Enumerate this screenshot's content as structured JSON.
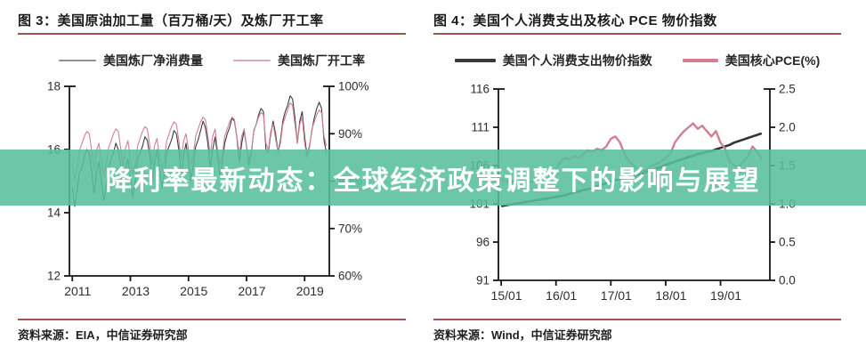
{
  "accent": {
    "rule_color": "#a2524e"
  },
  "banner": {
    "text": "降利率最新动态：全球经济政策调整下的影响与展望",
    "bg_color": "#57bf9b",
    "bg_opacity": 0.88,
    "text_color": "#ffffff"
  },
  "figure3": {
    "title": "图 3：美国原油加工量（百万桶/天）及炼厂开工率",
    "source": "资料来源：EIA，中信证券研究部",
    "legend": [
      {
        "label": "美国炼厂净消费量",
        "swatch_color": "#8f8f8f",
        "swatch_width": 42,
        "swatch_height": 2
      },
      {
        "label": "美国炼厂开工率",
        "swatch_color": "#d9aab5",
        "swatch_width": 42,
        "swatch_height": 2
      }
    ],
    "chart_data": {
      "type": "line",
      "title": "美国原油加工量（百万桶/天）及炼厂开工率",
      "x_start": 2011.0,
      "x_step_years": 0.0833333,
      "x_range": [
        2010.9,
        2019.85
      ],
      "x_ticks": [
        {
          "value": 2011,
          "label": "2011"
        },
        {
          "value": 2013,
          "label": "2013"
        },
        {
          "value": 2015,
          "label": "2015"
        },
        {
          "value": 2017,
          "label": "2017"
        },
        {
          "value": 2019,
          "label": "2019"
        }
      ],
      "left_axis": {
        "range": [
          12,
          18
        ],
        "ticks": [
          {
            "value": 12,
            "label": "12"
          },
          {
            "value": 14,
            "label": "14"
          },
          {
            "value": 16,
            "label": "16"
          },
          {
            "value": 18,
            "label": "18"
          }
        ]
      },
      "right_axis": {
        "range": [
          60,
          100
        ],
        "ticks": [
          {
            "value": 60,
            "label": "60%"
          },
          {
            "value": 70,
            "label": "70%"
          },
          {
            "value": 80,
            "label": "80%"
          },
          {
            "value": 90,
            "label": "90%"
          },
          {
            "value": 100,
            "label": "100%"
          }
        ]
      },
      "grid": false,
      "series": [
        {
          "name": "美国炼厂净消费量",
          "axis": "left",
          "color": "#3b3b3b",
          "stroke_width": 1.1,
          "values": [
            14.8,
            14.2,
            14.7,
            15.3,
            15.4,
            15.8,
            16.0,
            15.9,
            15.3,
            14.6,
            15.3,
            15.6,
            15.0,
            14.4,
            14.8,
            15.4,
            15.7,
            15.9,
            16.2,
            16.0,
            15.5,
            14.7,
            15.4,
            15.7,
            15.1,
            14.5,
            15.0,
            15.7,
            15.9,
            16.1,
            16.4,
            16.3,
            15.8,
            15.0,
            15.6,
            16.0,
            15.4,
            14.8,
            15.2,
            15.9,
            16.1,
            16.3,
            16.6,
            16.5,
            16.0,
            15.1,
            15.8,
            16.2,
            15.6,
            15.0,
            15.5,
            16.1,
            16.3,
            16.6,
            16.9,
            16.7,
            16.2,
            15.4,
            16.0,
            16.4,
            15.8,
            15.2,
            15.6,
            16.2,
            16.5,
            16.7,
            17.0,
            16.9,
            16.4,
            15.6,
            16.2,
            16.6,
            16.1,
            15.5,
            15.9,
            16.6,
            16.8,
            17.1,
            17.3,
            17.2,
            16.0,
            15.9,
            16.5,
            16.9,
            16.5,
            15.9,
            16.3,
            16.9,
            17.2,
            17.4,
            17.7,
            17.6,
            17.0,
            16.2,
            16.9,
            17.2,
            16.4,
            15.8,
            16.1,
            16.6,
            17.0,
            17.3,
            17.5,
            17.3,
            16.3,
            15.9
          ]
        },
        {
          "name": "美国炼厂开工率",
          "axis": "right",
          "color": "#d2808f",
          "stroke_width": 1.1,
          "values": [
            83.5,
            80.5,
            82.5,
            86.5,
            88,
            89.5,
            90.5,
            90,
            86.5,
            82.5,
            86.5,
            88,
            84,
            81,
            83,
            87,
            88.5,
            90,
            91,
            90.5,
            87,
            83,
            87,
            88.5,
            84.5,
            81.5,
            83.5,
            87.5,
            89,
            90.5,
            91.5,
            91,
            87.5,
            83.5,
            87.5,
            89,
            85.5,
            82.5,
            84.5,
            88.5,
            90,
            91.5,
            92.5,
            92,
            88.5,
            84.5,
            88.5,
            90,
            86.5,
            83.5,
            85.5,
            89.5,
            91,
            92.5,
            93.5,
            93,
            89.5,
            85.5,
            89.5,
            91,
            86.5,
            83.5,
            85.5,
            89.5,
            91,
            92.5,
            93.5,
            93,
            89.5,
            85.5,
            89.5,
            91,
            87.5,
            84.5,
            86.5,
            90.5,
            92,
            93.5,
            94.5,
            94,
            88,
            86.5,
            90.5,
            92,
            89,
            86,
            88,
            92,
            93.5,
            95,
            96.5,
            96,
            92,
            88,
            92,
            93.5,
            88,
            85,
            87,
            91,
            92.5,
            94,
            95,
            94.5,
            89.5,
            87.5
          ]
        }
      ]
    }
  },
  "figure4": {
    "title": "图 4：美国个人消费支出及核心 PCE 物价指数",
    "source": "资料来源：Wind，中信证券研究部",
    "legend": [
      {
        "label": "美国个人消费支出物价指数",
        "swatch_color": "#3a3a3a",
        "swatch_width": 46,
        "swatch_height": 4
      },
      {
        "label": "美国核心PCE(%)",
        "swatch_color": "#d2808f",
        "swatch_width": 40,
        "swatch_height": 4
      }
    ],
    "chart_data": {
      "type": "line",
      "title": "美国个人消费支出及核心 PCE 物价指数",
      "x_start": 2015.0,
      "x_step_years": 0.0833333,
      "x_range": [
        2014.95,
        2019.9
      ],
      "x_ticks": [
        {
          "value": 2015,
          "label": "15/01"
        },
        {
          "value": 2016,
          "label": "16/01"
        },
        {
          "value": 2017,
          "label": "17/01"
        },
        {
          "value": 2018,
          "label": "18/01"
        },
        {
          "value": 2019,
          "label": "19/01"
        }
      ],
      "left_axis": {
        "range": [
          91,
          116
        ],
        "ticks": [
          {
            "value": 91,
            "label": "91"
          },
          {
            "value": 96,
            "label": "96"
          },
          {
            "value": 101,
            "label": "101"
          },
          {
            "value": 106,
            "label": "106"
          },
          {
            "value": 111,
            "label": "111"
          },
          {
            "value": 116,
            "label": "116"
          }
        ]
      },
      "right_axis": {
        "range": [
          0,
          2.5
        ],
        "ticks": [
          {
            "value": 0,
            "label": "0.0"
          },
          {
            "value": 0.5,
            "label": "0.5"
          },
          {
            "value": 1.0,
            "label": "1.0"
          },
          {
            "value": 1.5,
            "label": "1.5"
          },
          {
            "value": 2.0,
            "label": "2.0"
          },
          {
            "value": 2.5,
            "label": "2.5"
          }
        ]
      },
      "grid": false,
      "series": [
        {
          "name": "美国个人消费支出物价指数",
          "axis": "left",
          "color": "#333333",
          "stroke_width": 2.6,
          "values": [
            100.7,
            100.8,
            100.9,
            101.0,
            101.1,
            101.2,
            101.3,
            101.4,
            101.5,
            101.6,
            101.7,
            101.8,
            101.9,
            102.0,
            102.1,
            102.3,
            102.5,
            102.6,
            102.8,
            102.9,
            103.1,
            103.3,
            103.5,
            103.7,
            103.9,
            104.1,
            104.2,
            104.4,
            104.5,
            104.6,
            104.8,
            105.0,
            105.2,
            105.4,
            105.6,
            105.8,
            106.1,
            106.3,
            106.5,
            106.7,
            106.9,
            107.1,
            107.3,
            107.5,
            107.6,
            107.8,
            107.9,
            108.1,
            108.3,
            108.5,
            108.7,
            109.0,
            109.2,
            109.4,
            109.6,
            109.8,
            110.0,
            110.2
          ]
        },
        {
          "name": "美国核心PCE(%)",
          "axis": "right",
          "color": "#d2808f",
          "stroke_width": 2.4,
          "values": [
            1.32,
            1.3,
            1.28,
            1.3,
            1.32,
            1.3,
            1.28,
            1.3,
            1.32,
            1.28,
            1.3,
            1.35,
            1.45,
            1.55,
            1.6,
            1.58,
            1.62,
            1.6,
            1.65,
            1.7,
            1.68,
            1.72,
            1.7,
            1.75,
            1.85,
            1.88,
            1.8,
            1.65,
            1.55,
            1.5,
            1.45,
            1.42,
            1.45,
            1.5,
            1.52,
            1.55,
            1.6,
            1.65,
            1.8,
            1.88,
            1.95,
            2.0,
            2.05,
            1.98,
            2.02,
            1.95,
            1.88,
            1.95,
            1.8,
            1.72,
            1.55,
            1.5,
            1.48,
            1.55,
            1.62,
            1.75,
            1.68,
            1.58
          ]
        }
      ]
    }
  }
}
